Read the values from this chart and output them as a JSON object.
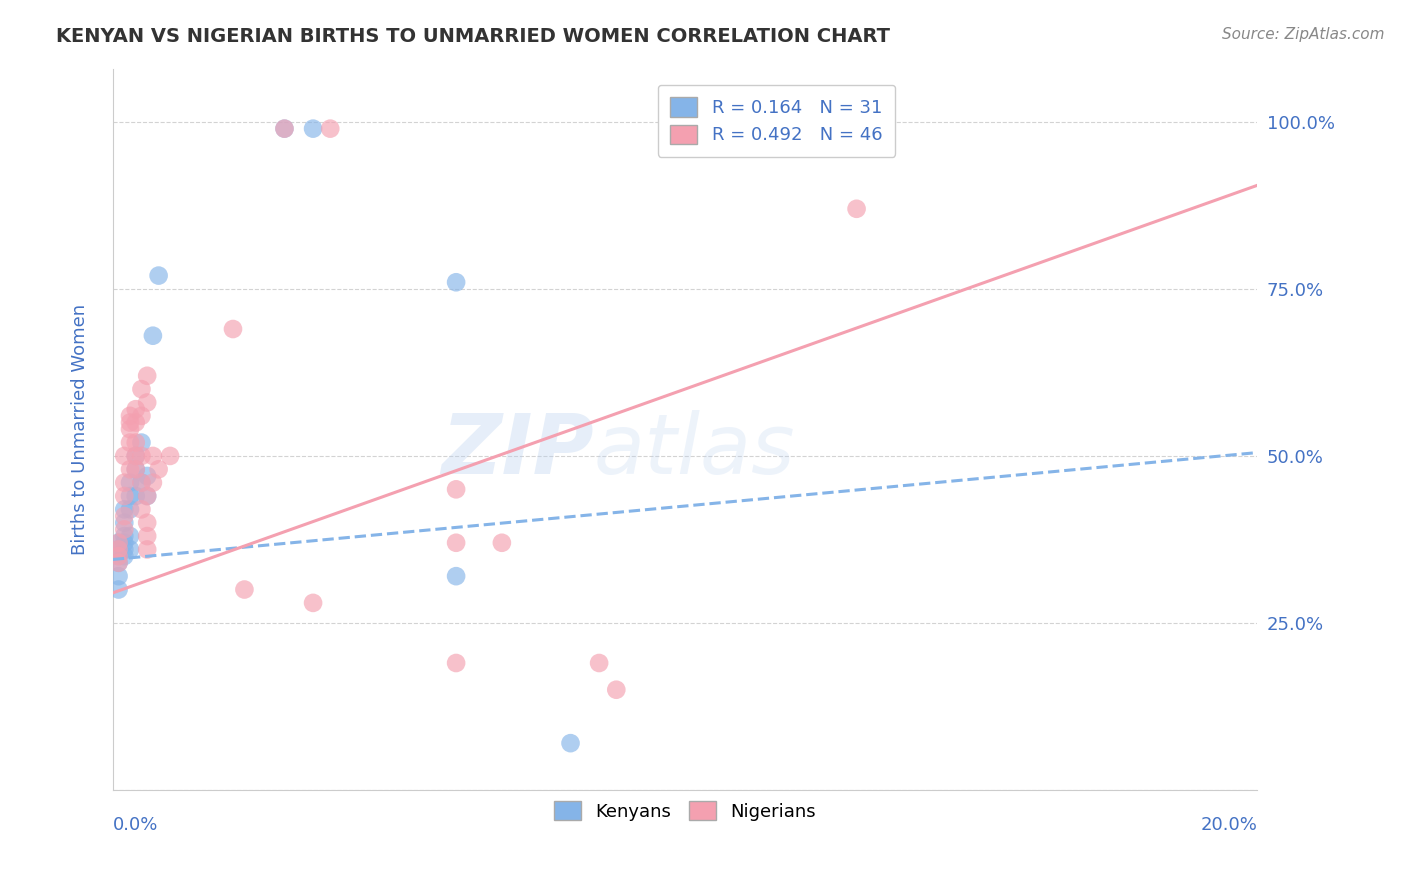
{
  "title": "KENYAN VS NIGERIAN BIRTHS TO UNMARRIED WOMEN CORRELATION CHART",
  "source": "Source: ZipAtlas.com",
  "ylabel": "Births to Unmarried Women",
  "x_label_bottom_left": "0.0%",
  "x_label_bottom_right": "20.0%",
  "y_ticks": [
    0.0,
    0.25,
    0.5,
    0.75,
    1.0
  ],
  "y_tick_labels": [
    "",
    "25.0%",
    "50.0%",
    "75.0%",
    "100.0%"
  ],
  "xlim": [
    0.0,
    0.2
  ],
  "ylim": [
    0.0,
    1.08
  ],
  "kenyan_color": "#85b4e8",
  "nigerian_color": "#f4a0b0",
  "kenyan_R": 0.164,
  "kenyan_N": 31,
  "nigerian_R": 0.492,
  "nigerian_N": 46,
  "kenyan_scatter": [
    [
      0.001,
      0.37
    ],
    [
      0.001,
      0.36
    ],
    [
      0.001,
      0.34
    ],
    [
      0.001,
      0.32
    ],
    [
      0.001,
      0.3
    ],
    [
      0.001,
      0.35
    ],
    [
      0.002,
      0.38
    ],
    [
      0.002,
      0.37
    ],
    [
      0.002,
      0.36
    ],
    [
      0.002,
      0.35
    ],
    [
      0.002,
      0.4
    ],
    [
      0.002,
      0.42
    ],
    [
      0.003,
      0.44
    ],
    [
      0.003,
      0.46
    ],
    [
      0.003,
      0.42
    ],
    [
      0.003,
      0.38
    ],
    [
      0.003,
      0.36
    ],
    [
      0.004,
      0.48
    ],
    [
      0.004,
      0.5
    ],
    [
      0.004,
      0.44
    ],
    [
      0.005,
      0.52
    ],
    [
      0.005,
      0.46
    ],
    [
      0.006,
      0.47
    ],
    [
      0.006,
      0.44
    ],
    [
      0.007,
      0.68
    ],
    [
      0.008,
      0.77
    ],
    [
      0.03,
      0.99
    ],
    [
      0.035,
      0.99
    ],
    [
      0.06,
      0.76
    ],
    [
      0.06,
      0.32
    ],
    [
      0.08,
      0.07
    ]
  ],
  "nigerian_scatter": [
    [
      0.001,
      0.37
    ],
    [
      0.001,
      0.36
    ],
    [
      0.001,
      0.35
    ],
    [
      0.001,
      0.34
    ],
    [
      0.002,
      0.39
    ],
    [
      0.002,
      0.41
    ],
    [
      0.002,
      0.44
    ],
    [
      0.002,
      0.46
    ],
    [
      0.002,
      0.5
    ],
    [
      0.003,
      0.48
    ],
    [
      0.003,
      0.52
    ],
    [
      0.003,
      0.54
    ],
    [
      0.003,
      0.55
    ],
    [
      0.003,
      0.56
    ],
    [
      0.004,
      0.57
    ],
    [
      0.004,
      0.55
    ],
    [
      0.004,
      0.52
    ],
    [
      0.004,
      0.5
    ],
    [
      0.004,
      0.48
    ],
    [
      0.005,
      0.6
    ],
    [
      0.005,
      0.56
    ],
    [
      0.005,
      0.5
    ],
    [
      0.005,
      0.46
    ],
    [
      0.005,
      0.42
    ],
    [
      0.006,
      0.62
    ],
    [
      0.006,
      0.58
    ],
    [
      0.006,
      0.44
    ],
    [
      0.006,
      0.4
    ],
    [
      0.006,
      0.38
    ],
    [
      0.006,
      0.36
    ],
    [
      0.007,
      0.5
    ],
    [
      0.007,
      0.46
    ],
    [
      0.008,
      0.48
    ],
    [
      0.01,
      0.5
    ],
    [
      0.03,
      0.99
    ],
    [
      0.038,
      0.99
    ],
    [
      0.021,
      0.69
    ],
    [
      0.023,
      0.3
    ],
    [
      0.035,
      0.28
    ],
    [
      0.06,
      0.45
    ],
    [
      0.06,
      0.37
    ],
    [
      0.068,
      0.37
    ],
    [
      0.085,
      0.19
    ],
    [
      0.088,
      0.15
    ],
    [
      0.13,
      0.87
    ],
    [
      0.06,
      0.19
    ]
  ],
  "kenyan_trend": [
    0.0,
    0.2,
    0.34,
    0.5
  ],
  "nigerian_trend": [
    0.0,
    0.2,
    0.3,
    0.9
  ],
  "background_color": "#ffffff",
  "grid_color": "#c8c8c8",
  "watermark_text": "ZIPAtlas",
  "watermark_color": "#b8d0ef",
  "watermark_alpha": 0.4
}
